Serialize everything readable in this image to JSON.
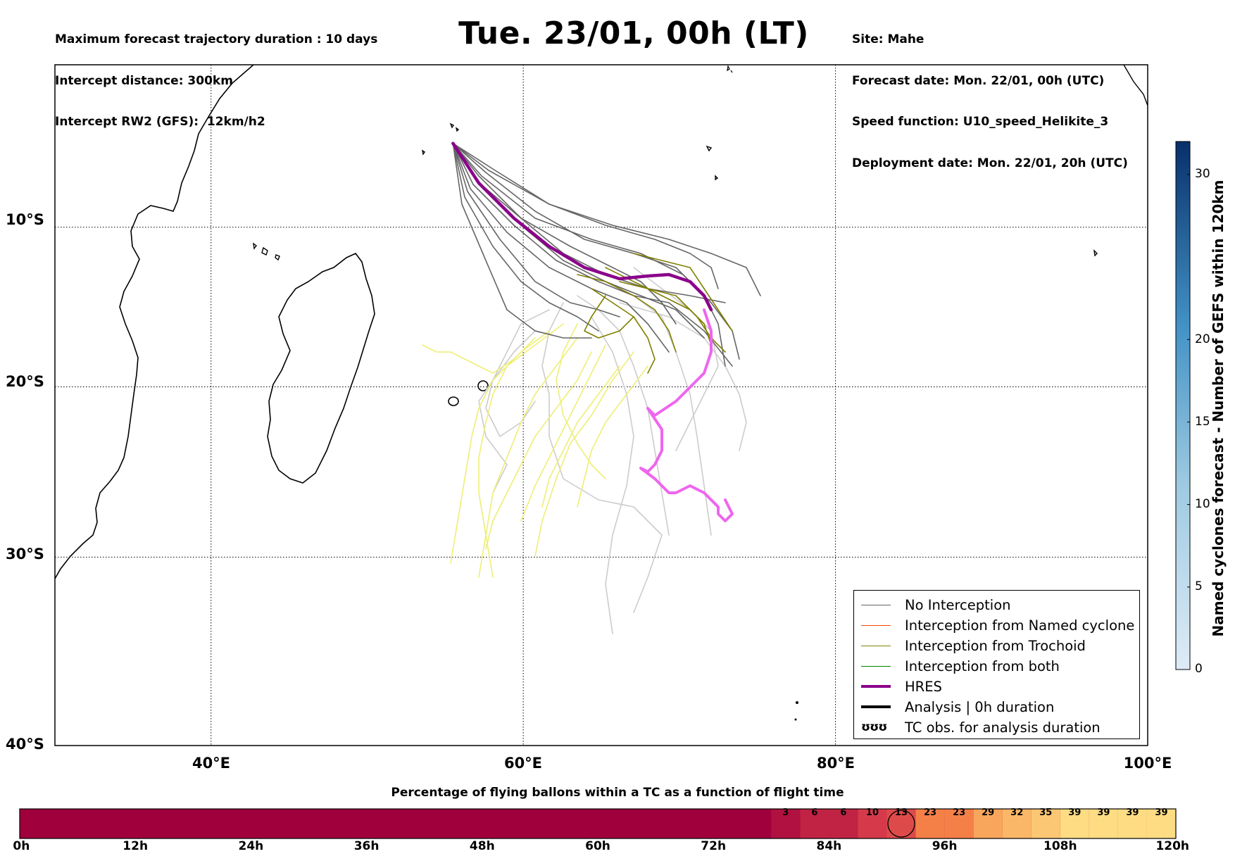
{
  "header": {
    "left": [
      "Maximum forecast trajectory duration : 10 days",
      "Intercept distance: 300km",
      "Intercept RW2 (GFS):  12km/h2"
    ],
    "title": "Tue. 23/01, 00h (LT)",
    "right": [
      "Site: Mahe",
      "Forecast date: Mon. 22/01, 00h (UTC)",
      "Speed function: U10_speed_Helikite_3",
      "Deployment date: Mon. 22/01, 20h (UTC)"
    ]
  },
  "map": {
    "lat_labels": [
      "10°S",
      "20°S",
      "30°S",
      "40°S"
    ],
    "lon_labels": [
      "40°E",
      "60°E",
      "80°E",
      "100°E"
    ],
    "extent": {
      "lon": [
        30,
        100
      ],
      "lat": [
        -40,
        0.5
      ]
    },
    "site": {
      "name": "Mahe",
      "lon": 55.5,
      "lat": -4.6
    },
    "colors": {
      "no_interception": "#666666",
      "named_cyclone": "#ff4500",
      "trochoid": "#808000",
      "both": "#008000",
      "hres": "#8b008b",
      "hres_late": "#ee66ee",
      "analysis": "#000000",
      "late_gray": "#cccccc",
      "late_yellow": "#eeee77"
    }
  },
  "legend": {
    "items": [
      {
        "label": "No Interception",
        "color": "#666666",
        "width": 1
      },
      {
        "label": "Interception from Named cyclone",
        "color": "#ff4500",
        "width": 1
      },
      {
        "label": "Interception from Trochoid",
        "color": "#808000",
        "width": 1
      },
      {
        "label": "Interception from both",
        "color": "#008000",
        "width": 1
      },
      {
        "label": "HRES",
        "color": "#8b008b",
        "width": 4
      },
      {
        "label": "Analysis | 0h duration",
        "color": "#000000",
        "width": 4
      }
    ],
    "tc_symbol": "ʊʊʊ",
    "tc_label": "TC obs. for analysis duration"
  },
  "colorbar": {
    "label": "Named cyclones forecast - Number of GEFS within 120km",
    "ticks": [
      "0",
      "5",
      "10",
      "15",
      "20",
      "30"
    ],
    "range": [
      0,
      32
    ]
  },
  "bottom_bar": {
    "title": "Percentage of flying ballons within a TC as a function of flight time",
    "hour_labels": [
      "0h",
      "12h",
      "24h",
      "36h",
      "48h",
      "60h",
      "72h",
      "84h",
      "96h",
      "108h",
      "120h"
    ],
    "values": [
      "3",
      "6",
      "6",
      "10",
      "13",
      "23",
      "23",
      "29",
      "32",
      "35",
      "39",
      "39",
      "39",
      "39"
    ],
    "start_hour": 78,
    "step_hours": 3,
    "highlight_index": 4
  }
}
